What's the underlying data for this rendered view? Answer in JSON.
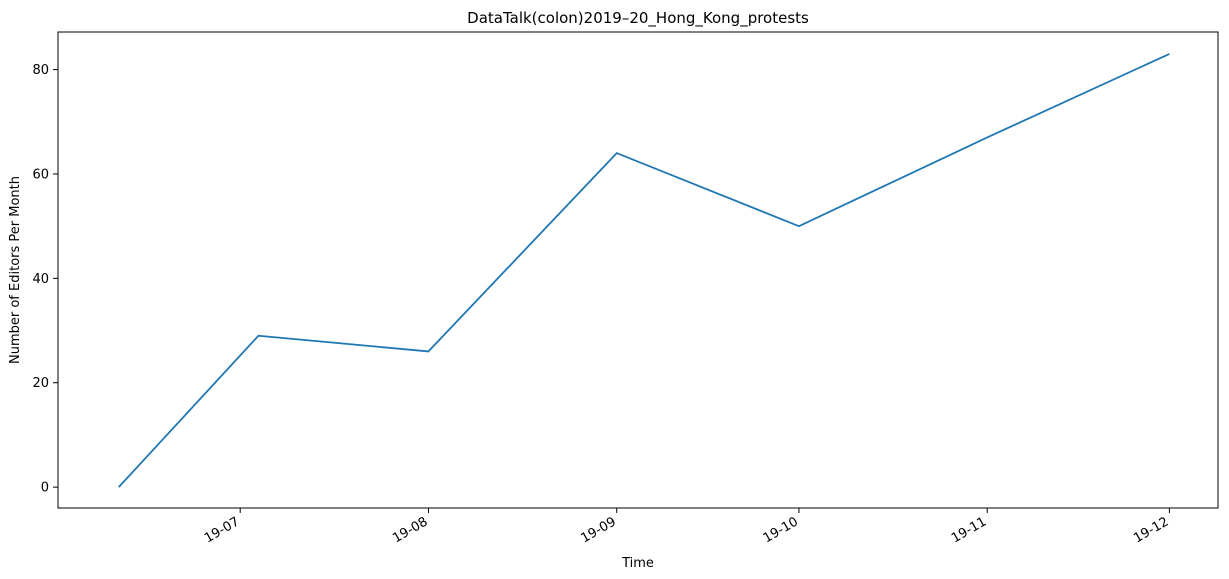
{
  "chart_data": {
    "type": "line",
    "title": "DataTalk(colon)2019–20_Hong_Kong_protests",
    "xlabel": "Time",
    "ylabel": "Number of Editors Per Month",
    "x": [
      "2019-06-11",
      "2019-07-04",
      "2019-08-01",
      "2019-09-01",
      "2019-10-01",
      "2019-11-01",
      "2019-12-01"
    ],
    "series": [
      {
        "values": [
          0,
          29,
          26,
          64,
          50,
          67,
          83
        ],
        "color": "#1f77b4"
      }
    ],
    "xlim": [
      "2019-06-01",
      "2019-12-09"
    ],
    "ylim": [
      -4,
      87.2
    ],
    "xticks": [
      "2019-07-01",
      "2019-08-01",
      "2019-09-01",
      "2019-10-01",
      "2019-11-01",
      "2019-12-01"
    ],
    "xtick_labels": [
      "19-07",
      "19-08",
      "19-09",
      "19-10",
      "19-11",
      "19-12"
    ],
    "yticks": [
      0,
      20,
      40,
      60,
      80
    ],
    "grid": false,
    "legend": "none"
  }
}
